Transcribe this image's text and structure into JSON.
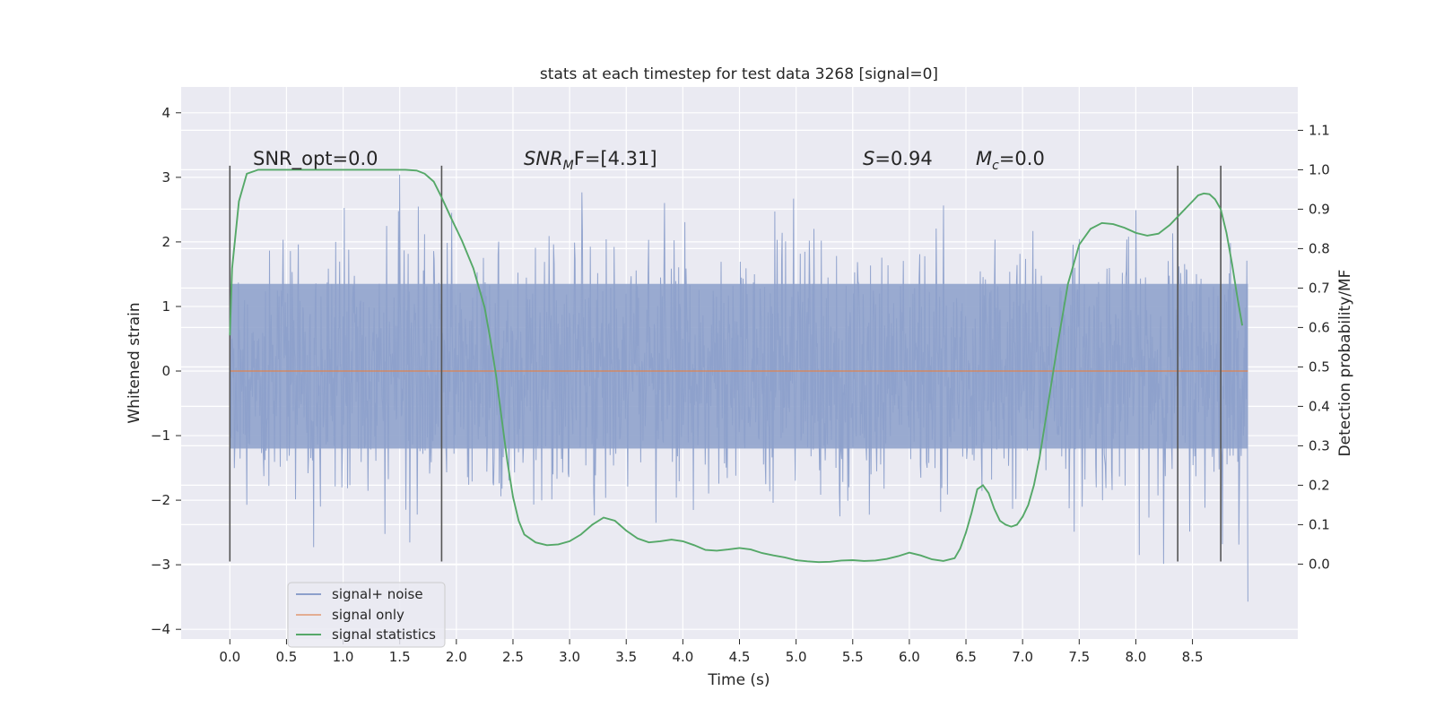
{
  "chart_data": {
    "type": "line",
    "title": "stats at each timestep for test data 3268 [signal=0]",
    "xlabel": "Time (s)",
    "ylabel_left": "Whitened strain",
    "ylabel_right": "Detection probability/MF",
    "xlim": [
      -0.43,
      9.43
    ],
    "ylim_left": [
      -4.15,
      4.4
    ],
    "ylim_right": [
      -0.19,
      1.21
    ],
    "x_ticks": [
      "0.0",
      "0.5",
      "1.0",
      "1.5",
      "2.0",
      "2.5",
      "3.0",
      "3.5",
      "4.0",
      "4.5",
      "5.0",
      "5.5",
      "6.0",
      "6.5",
      "7.0",
      "7.5",
      "8.0",
      "8.5"
    ],
    "y_left_ticks": [
      "−4",
      "−3",
      "−2",
      "−1",
      "0",
      "1",
      "2",
      "3",
      "4"
    ],
    "y_right_ticks": [
      "0.0",
      "0.1",
      "0.2",
      "0.3",
      "0.4",
      "0.5",
      "0.6",
      "0.7",
      "0.8",
      "0.9",
      "1.0",
      "1.1"
    ],
    "grid": true,
    "legend_position": "lower-left",
    "annotations": {
      "snr_opt": "SNR_opt=0.0",
      "snr_mf_main": "SNR",
      "snr_mf_sub": "M",
      "snr_mf_rest": "F=[4.31]",
      "s_main": "S",
      "s_rest": "=0.94",
      "mc_main": "M",
      "mc_sub": "c",
      "mc_rest": "=0.0"
    },
    "vertical_markers": {
      "x": [
        0.0,
        1.87,
        8.37,
        8.75
      ],
      "y_range": [
        -2.95,
        3.18
      ]
    },
    "series": [
      {
        "name": "signal+ noise",
        "axis": "left",
        "color": "#8da0cb",
        "x_range": [
          0.0,
          8.99
        ],
        "band": [
          -1.2,
          1.35
        ],
        "envelope": [
          -3.6,
          4.0
        ],
        "note": "dense noisy trace"
      },
      {
        "name": "signal only",
        "axis": "left",
        "color": "#dd8452",
        "x": [
          0.0,
          8.99
        ],
        "y": [
          0.0,
          0.0
        ]
      },
      {
        "name": "signal statistics",
        "axis": "right",
        "color": "#55a868",
        "x": [
          0.0,
          0.02,
          0.08,
          0.15,
          0.25,
          0.4,
          0.6,
          0.8,
          1.0,
          1.2,
          1.4,
          1.55,
          1.65,
          1.72,
          1.8,
          1.87,
          1.95,
          2.05,
          2.15,
          2.25,
          2.3,
          2.35,
          2.4,
          2.45,
          2.5,
          2.55,
          2.6,
          2.7,
          2.8,
          2.9,
          3.0,
          3.1,
          3.2,
          3.3,
          3.4,
          3.5,
          3.6,
          3.7,
          3.8,
          3.9,
          4.0,
          4.1,
          4.2,
          4.3,
          4.4,
          4.5,
          4.6,
          4.7,
          4.8,
          4.9,
          5.0,
          5.1,
          5.2,
          5.3,
          5.4,
          5.5,
          5.6,
          5.7,
          5.8,
          5.9,
          6.0,
          6.1,
          6.2,
          6.3,
          6.4,
          6.45,
          6.5,
          6.55,
          6.6,
          6.65,
          6.7,
          6.75,
          6.8,
          6.85,
          6.9,
          6.95,
          7.0,
          7.05,
          7.1,
          7.15,
          7.2,
          7.3,
          7.4,
          7.5,
          7.6,
          7.7,
          7.8,
          7.9,
          8.0,
          8.1,
          8.2,
          8.3,
          8.4,
          8.5,
          8.55,
          8.6,
          8.65,
          8.7,
          8.75,
          8.8,
          8.85,
          8.9,
          8.94
        ],
        "y": [
          0.58,
          0.75,
          0.92,
          0.99,
          1.0,
          1.0,
          1.0,
          1.0,
          1.0,
          1.0,
          1.0,
          1.0,
          0.998,
          0.99,
          0.97,
          0.93,
          0.88,
          0.82,
          0.75,
          0.65,
          0.57,
          0.48,
          0.37,
          0.26,
          0.17,
          0.11,
          0.075,
          0.055,
          0.048,
          0.05,
          0.058,
          0.075,
          0.1,
          0.118,
          0.11,
          0.085,
          0.065,
          0.055,
          0.058,
          0.062,
          0.058,
          0.048,
          0.036,
          0.034,
          0.037,
          0.041,
          0.037,
          0.028,
          0.022,
          0.017,
          0.01,
          0.007,
          0.005,
          0.006,
          0.009,
          0.01,
          0.008,
          0.009,
          0.013,
          0.02,
          0.029,
          0.022,
          0.012,
          0.008,
          0.015,
          0.04,
          0.08,
          0.13,
          0.19,
          0.2,
          0.18,
          0.14,
          0.11,
          0.1,
          0.095,
          0.1,
          0.12,
          0.15,
          0.2,
          0.27,
          0.36,
          0.54,
          0.71,
          0.81,
          0.85,
          0.865,
          0.862,
          0.853,
          0.84,
          0.833,
          0.838,
          0.86,
          0.89,
          0.92,
          0.935,
          0.94,
          0.938,
          0.925,
          0.9,
          0.84,
          0.76,
          0.67,
          0.605
        ]
      }
    ]
  }
}
